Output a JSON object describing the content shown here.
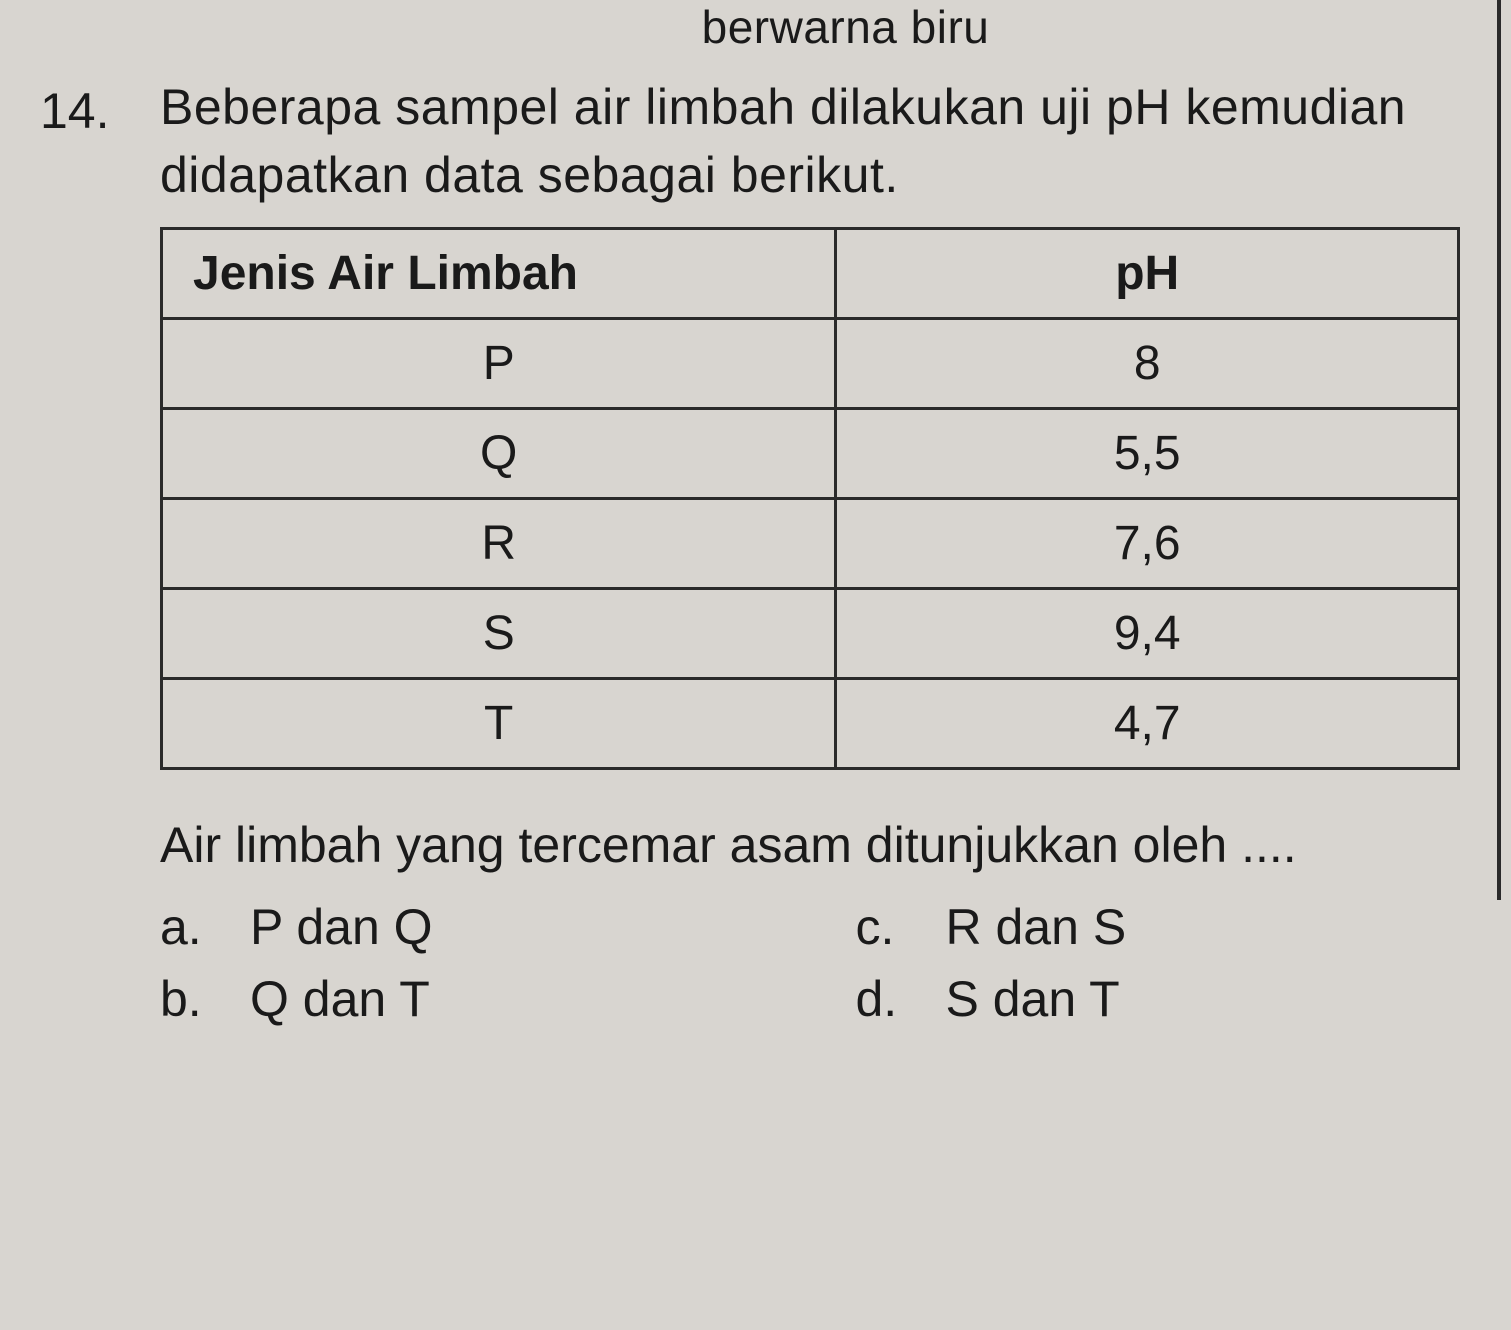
{
  "top_fragment": "berwarna biru",
  "question": {
    "number": "14.",
    "text": "Beberapa sampel air limbah dilakukan uji pH kemudian didapatkan data sebagai berikut."
  },
  "table": {
    "columns": [
      "Jenis Air Limbah",
      "pH"
    ],
    "rows": [
      [
        "P",
        "8"
      ],
      [
        "Q",
        "5,5"
      ],
      [
        "R",
        "7,6"
      ],
      [
        "S",
        "9,4"
      ],
      [
        "T",
        "4,7"
      ]
    ],
    "border_color": "#2a2a2a",
    "background_color": "#d8d5d0",
    "header_fontsize": 48,
    "cell_fontsize": 48
  },
  "follow_text": "Air limbah yang tercemar asam ditunjukkan oleh ....",
  "options": {
    "a": {
      "letter": "a.",
      "text": "P dan Q"
    },
    "b": {
      "letter": "b.",
      "text": "Q dan T"
    },
    "c": {
      "letter": "c.",
      "text": "R dan S"
    },
    "d": {
      "letter": "d.",
      "text": "S dan T"
    }
  },
  "colors": {
    "background": "#d8d5d0",
    "text": "#1a1a1a",
    "border": "#2a2a2a"
  }
}
